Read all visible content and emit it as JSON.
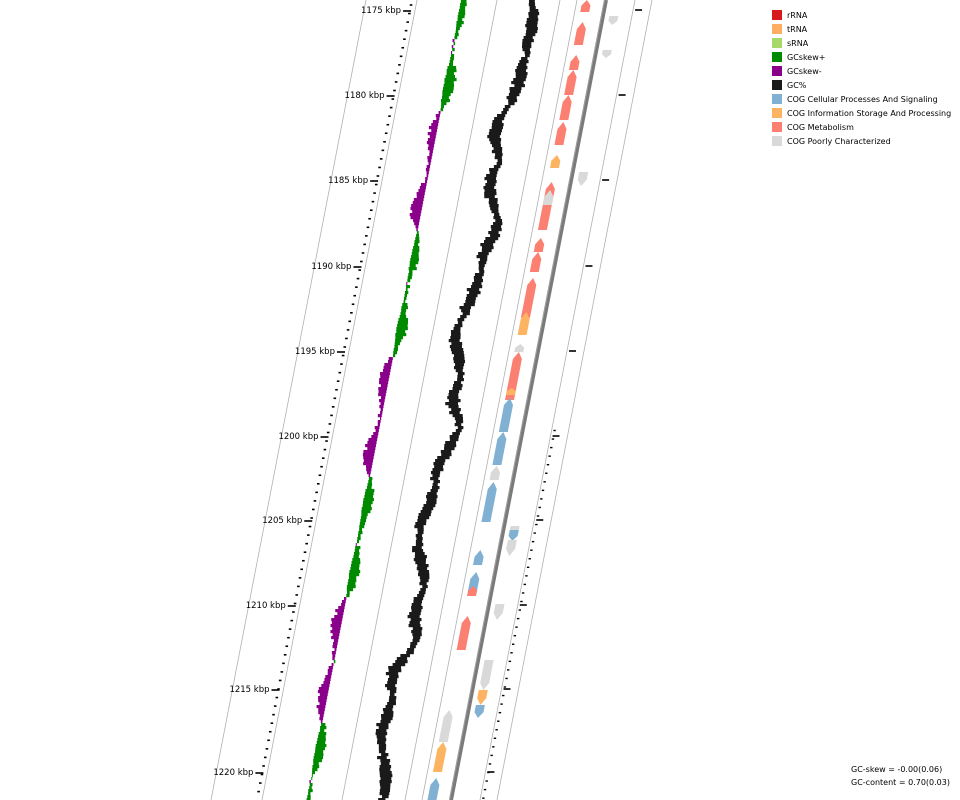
{
  "legend": [
    {
      "label": "rRNA",
      "color": "#d7191c"
    },
    {
      "label": "tRNA",
      "color": "#fdae61"
    },
    {
      "label": "sRNA",
      "color": "#a6d96a"
    },
    {
      "label": "GCskew+",
      "color": "#008a00"
    },
    {
      "label": "GCskew-",
      "color": "#8b008b"
    },
    {
      "label": "GC%",
      "color": "#1a1a1a"
    },
    {
      "label": "COG Cellular Processes And Signaling",
      "color": "#80b1d3"
    },
    {
      "label": "COG Information Storage And Processing",
      "color": "#fdb462"
    },
    {
      "label": "COG Metabolism",
      "color": "#fb8072"
    },
    {
      "label": "COG Poorly Characterized",
      "color": "#d9d9d9"
    }
  ],
  "stats": {
    "gc_skew": "GC-skew = -0.00(0.06)",
    "gc_content": "GC-content = 0.70(0.03)"
  },
  "axis": {
    "unit": "kbp",
    "labels": [
      "1175 kbp",
      "1180 kbp",
      "1185 kbp",
      "1190 kbp",
      "1195 kbp",
      "1200 kbp",
      "1205 kbp",
      "1210 kbp",
      "1215 kbp",
      "1220 kbp"
    ]
  },
  "colors": {
    "gc_skew_pos": "#008a00",
    "gc_skew_neg": "#8b008b",
    "gc_content": "#1a1a1a",
    "backbone": "#808080",
    "guide_line": "#b0b0b0",
    "tick": "#000000"
  },
  "features": [
    {
      "strand": "+",
      "category": "COG Metabolism"
    },
    {
      "strand": "-",
      "category": "COG Poorly Characterized"
    },
    {
      "strand": "+",
      "category": "COG Metabolism"
    },
    {
      "strand": "-",
      "category": "COG Poorly Characterized"
    },
    {
      "strand": "+",
      "category": "COG Metabolism"
    },
    {
      "strand": "+",
      "category": "COG Metabolism"
    },
    {
      "strand": "+",
      "category": "COG Metabolism"
    },
    {
      "strand": "+",
      "category": "COG Metabolism"
    },
    {
      "strand": "+",
      "category": "COG Information Storage And Processing"
    },
    {
      "strand": "-",
      "category": "COG Poorly Characterized"
    },
    {
      "strand": "+",
      "category": "COG Metabolism"
    },
    {
      "strand": "+",
      "category": "COG Poorly Characterized"
    },
    {
      "strand": "+",
      "category": "COG Metabolism"
    },
    {
      "strand": "+",
      "category": "COG Metabolism"
    },
    {
      "strand": "+",
      "category": "COG Metabolism"
    },
    {
      "strand": "+",
      "category": "COG Information Storage And Processing"
    },
    {
      "strand": "+",
      "category": "COG Poorly Characterized"
    },
    {
      "strand": "+",
      "category": "COG Metabolism"
    },
    {
      "strand": "+",
      "category": "COG Information Storage And Processing"
    },
    {
      "strand": "+",
      "category": "COG Cellular Processes And Signaling"
    },
    {
      "strand": "+",
      "category": "COG Cellular Processes And Signaling"
    },
    {
      "strand": "+",
      "category": "COG Poorly Characterized"
    },
    {
      "strand": "+",
      "category": "COG Cellular Processes And Signaling"
    },
    {
      "strand": "-",
      "category": "COG Poorly Characterized"
    },
    {
      "strand": "-",
      "category": "COG Cellular Processes And Signaling"
    },
    {
      "strand": "-",
      "category": "COG Poorly Characterized"
    },
    {
      "strand": "+",
      "category": "COG Cellular Processes And Signaling"
    },
    {
      "strand": "+",
      "category": "COG Cellular Processes And Signaling"
    },
    {
      "strand": "+",
      "category": "COG Metabolism"
    },
    {
      "strand": "-",
      "category": "COG Poorly Characterized"
    },
    {
      "strand": "+",
      "category": "COG Metabolism"
    },
    {
      "strand": "-",
      "category": "COG Poorly Characterized"
    },
    {
      "strand": "-",
      "category": "COG Information Storage And Processing"
    },
    {
      "strand": "-",
      "category": "COG Cellular Processes And Signaling"
    },
    {
      "strand": "+",
      "category": "COG Poorly Characterized"
    },
    {
      "strand": "+",
      "category": "COG Information Storage And Processing"
    },
    {
      "strand": "+",
      "category": "COG Cellular Processes And Signaling"
    }
  ]
}
